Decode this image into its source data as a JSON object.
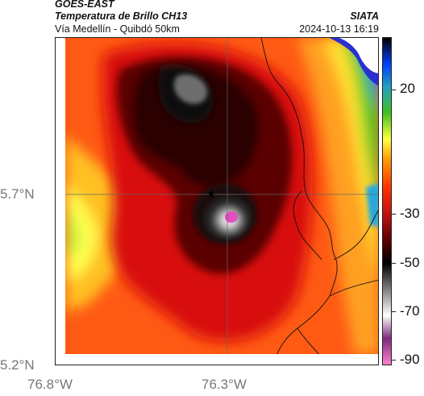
{
  "header": {
    "satellite": "GOES-EAST",
    "product": "Temperatura de Brillo CH13",
    "location": "Vía Medellín - Quibdó 50km",
    "organization": "SIATA",
    "timestamp": "2024-10-13 16:19"
  },
  "axes": {
    "lat_labels": [
      "5.7°N",
      "5.2°N"
    ],
    "lon_labels": [
      "76.8°W",
      "76.3°W"
    ]
  },
  "colorbar": {
    "tick_labels": [
      "20",
      "-30",
      "-50",
      "-70",
      "-90"
    ],
    "colors": [
      "#ff7fd0",
      "#7a2a7a",
      "#ffffff",
      "#808080",
      "#000000",
      "#5a0000",
      "#c01010",
      "#ff3000",
      "#ff9000",
      "#ffff40",
      "#40c020",
      "#20a0c0",
      "#0040ff",
      "#000000"
    ]
  },
  "map": {
    "marker_icon": "star-icon",
    "colors": {
      "warm": "#ff6a1a",
      "cold_core": "#1a1010",
      "coldest": "#e050c0"
    }
  }
}
